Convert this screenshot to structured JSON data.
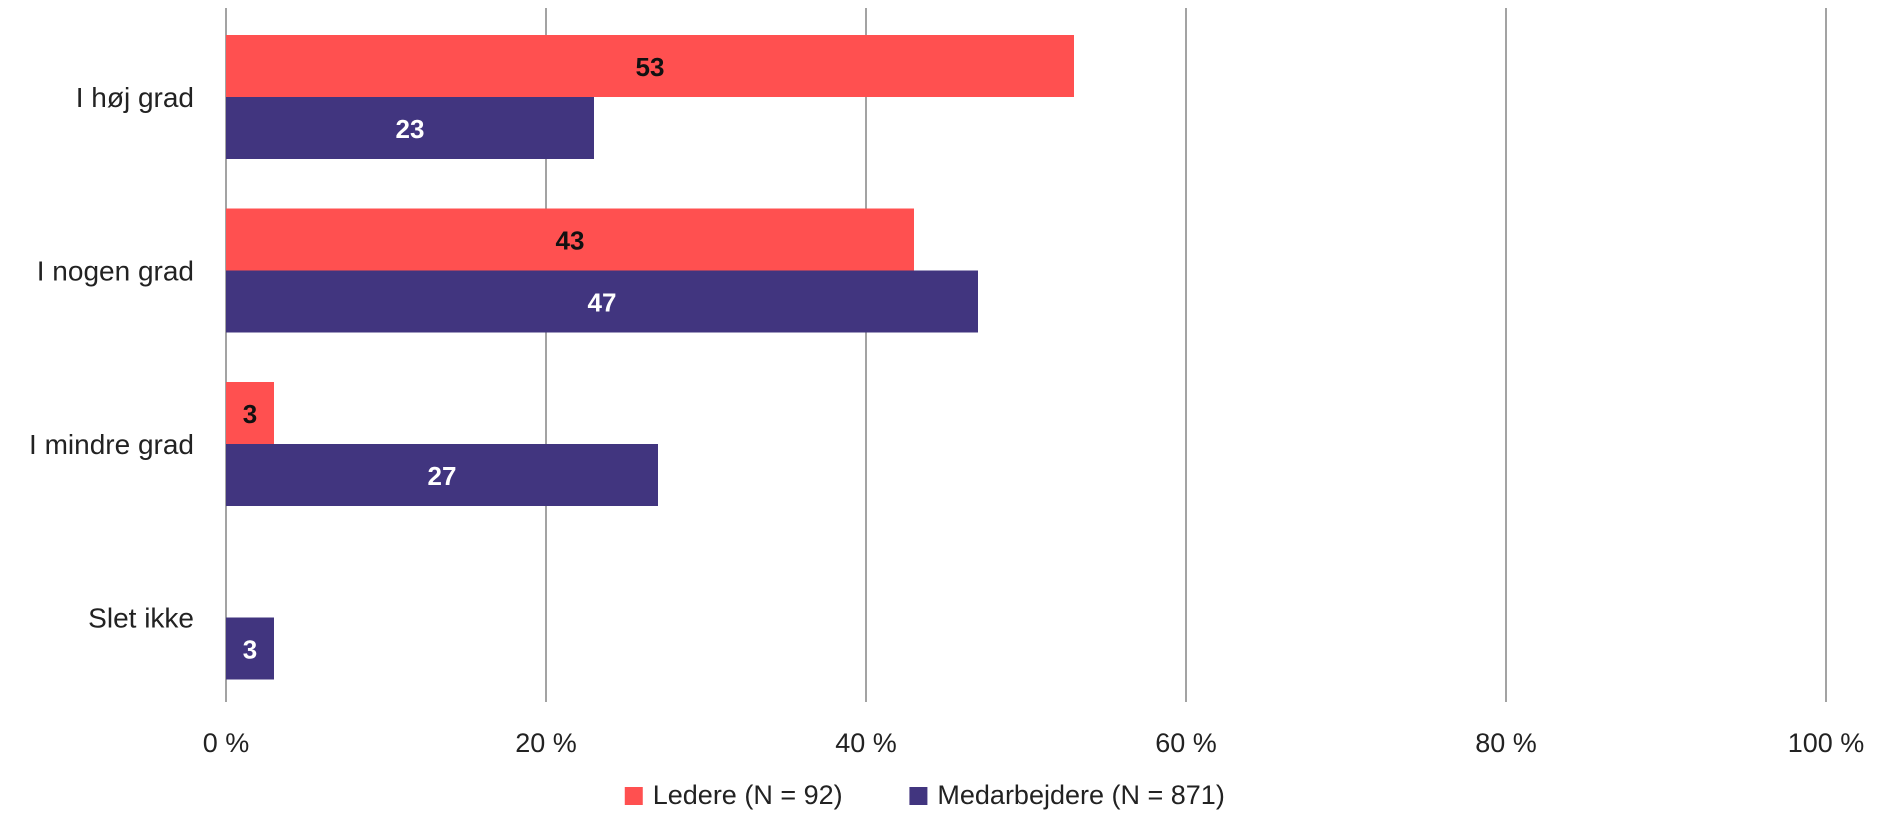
{
  "chart_data": {
    "type": "bar",
    "orientation": "horizontal",
    "title": "",
    "xlabel": "",
    "ylabel": "",
    "categories": [
      "I høj grad",
      "I nogen grad",
      "I mindre grad",
      "Slet ikke"
    ],
    "series": [
      {
        "name": "Ledere (N = 92)",
        "color": "#FF5050",
        "label_color": "#111111",
        "values": [
          53,
          43,
          3,
          null
        ]
      },
      {
        "name": "Medarbejdere (N = 871)",
        "color": "#41357F",
        "label_color": "#FFFFFF",
        "values": [
          23,
          47,
          27,
          3
        ]
      }
    ],
    "xlim": [
      0,
      100
    ],
    "x_ticks": [
      0,
      20,
      40,
      60,
      80,
      100
    ],
    "x_tick_labels": [
      "0 %",
      "20 %",
      "40 %",
      "60 %",
      "80 %",
      "100 %"
    ],
    "data_labels": true,
    "grid": "vertical",
    "legend_position": "bottom"
  }
}
